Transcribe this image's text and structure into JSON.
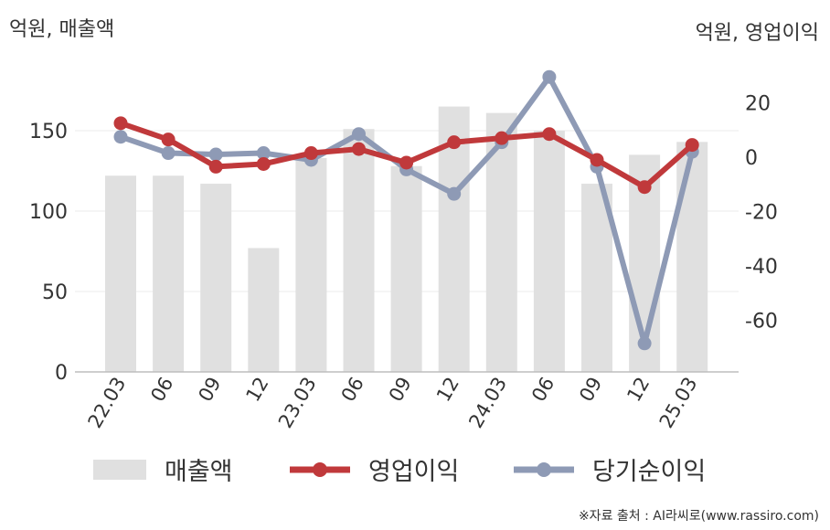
{
  "units": {
    "left": "억원, 매출액",
    "right": "억원, 영업이익"
  },
  "legend": [
    {
      "label": "매출액",
      "kind": "bar",
      "color": "#e0e0e0"
    },
    {
      "label": "영업이익",
      "kind": "line",
      "color": "#c0393b"
    },
    {
      "label": "당기순이익",
      "kind": "line",
      "color": "#8e9ab5"
    }
  ],
  "source": "※자료 출처 : AI라씨로(www.rassiro.com)",
  "chart_data": {
    "type": "bar",
    "categories": [
      "22.03",
      "06",
      "09",
      "12",
      "23.03",
      "06",
      "09",
      "12",
      "24.03",
      "06",
      "09",
      "12",
      "25.03"
    ],
    "left_axis": {
      "ylim": [
        0,
        185
      ],
      "ticks": [
        0,
        50,
        100,
        150
      ]
    },
    "right_axis": {
      "ylim": [
        -80,
        33
      ],
      "ticks": [
        20,
        0,
        -20,
        -40,
        -60
      ]
    },
    "series": [
      {
        "name": "매출액",
        "type": "bar",
        "axis": "left",
        "color": "#e0e0e0",
        "values": [
          122,
          122,
          117,
          77,
          133,
          151,
          128,
          165,
          161,
          150,
          117,
          135,
          143
        ]
      },
      {
        "name": "영업이익",
        "type": "line",
        "axis": "right",
        "color": "#c0393b",
        "values": [
          12.5,
          6.5,
          -3.5,
          -2.5,
          1.5,
          3,
          -2,
          5.5,
          7,
          8.5,
          -1,
          -11,
          4.5
        ]
      },
      {
        "name": "당기순이익",
        "type": "line",
        "axis": "right",
        "color": "#8e9ab5",
        "values": [
          7.5,
          1.5,
          1,
          1.5,
          -1,
          8.5,
          -4.5,
          -13.5,
          5.5,
          29.5,
          -3.5,
          -68.5,
          2
        ]
      }
    ]
  }
}
